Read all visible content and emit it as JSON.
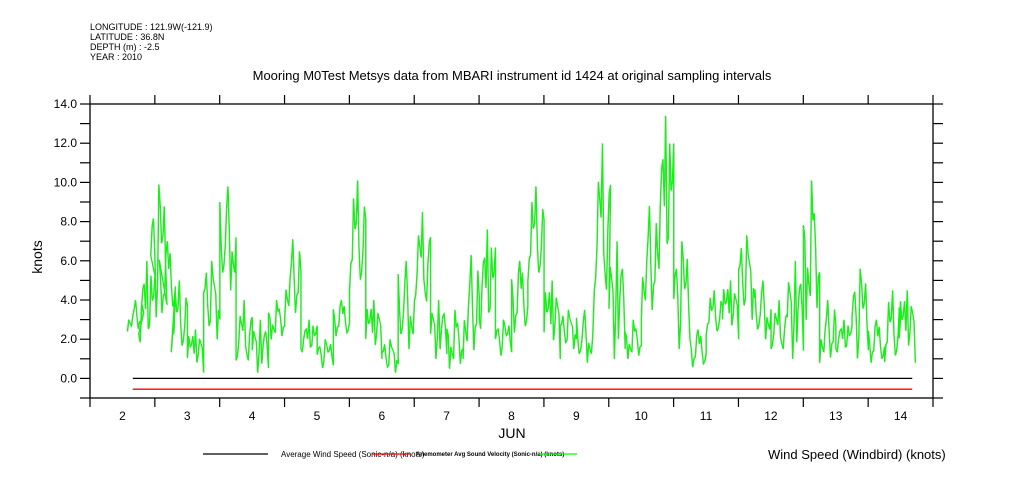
{
  "metadata": {
    "longitude": "LONGITUDE : 121.9W(-121.9)",
    "latitude": "LATITUDE : 36.8N",
    "depth": "DEPTH (m) : -2.5",
    "year": "YEAR : 2010"
  },
  "chart_data": {
    "type": "line",
    "title": "Mooring M0Test Metsys data from MBARI instrument id 1424 at original sampling intervals",
    "xlabel": "JUN",
    "ylabel": "knots",
    "xlim": [
      2,
      15
    ],
    "ylim": [
      -1,
      14
    ],
    "x_ticks": [
      2,
      3,
      4,
      5,
      6,
      7,
      8,
      9,
      10,
      11,
      12,
      13,
      14
    ],
    "y_ticks": [
      0,
      2,
      4,
      6,
      8,
      10,
      12,
      14
    ],
    "y_tick_labels": [
      "0.0",
      "2.0",
      "4.0",
      "6.0",
      "8.0",
      "10.0",
      "12.0",
      "14.0"
    ],
    "grid": false,
    "legend_placement": "bottom",
    "series": [
      {
        "name": "Average Wind Speed (Sonic-n/a) (knots)",
        "color": "#000000",
        "kind": "constant",
        "value": 0.0,
        "x_range": [
          2.66,
          14.68
        ]
      },
      {
        "name": "Anemometer Avg Sound Velocity (Sonic-n/a) (knots)",
        "color": "#ff0000",
        "kind": "constant",
        "value": -0.55,
        "x_range": [
          2.66,
          14.68
        ]
      },
      {
        "name": "Wind Speed (Windbird) (knots)",
        "color": "#00ff00",
        "kind": "binned-range",
        "day": [
          2.7,
          2.875,
          3.06,
          3.19,
          3.375,
          3.625,
          3.875,
          4.125,
          4.375,
          4.625,
          4.875,
          5.125,
          5.375,
          5.625,
          5.875,
          6.125,
          6.375,
          6.625,
          6.875,
          7.125,
          7.375,
          7.625,
          7.875,
          8.125,
          8.375,
          8.625,
          8.875,
          9.125,
          9.375,
          9.625,
          9.9,
          10.125,
          10.375,
          10.625,
          10.875,
          11.125,
          11.375,
          11.625,
          11.875,
          12.125,
          12.375,
          12.625,
          12.875,
          13.125,
          13.375,
          13.625,
          13.875,
          14.125,
          14.375,
          14.6
        ],
        "low": [
          2.4,
          1.0,
          2.5,
          3.0,
          1.0,
          0.3,
          2.0,
          4.5,
          0.3,
          0.3,
          2.0,
          3.0,
          1.0,
          0.4,
          2.0,
          4.0,
          1.0,
          0.3,
          1.5,
          3.0,
          1.0,
          0.5,
          1.0,
          1.5,
          1.0,
          2.0,
          4.5,
          1.0,
          1.5,
          0.8,
          3.0,
          1.0,
          1.0,
          3.0,
          4.0,
          1.0,
          0.4,
          2.0,
          2.0,
          3.0,
          2.0,
          1.0,
          1.0,
          3.0,
          0.8,
          1.0,
          0.6,
          0.6,
          0.5,
          0.8
        ],
        "high": [
          4.0,
          6.0,
          9.9,
          7.0,
          5.0,
          2.5,
          6.0,
          9.8,
          4.0,
          3.0,
          4.0,
          7.1,
          3.0,
          2.0,
          4.0,
          10.1,
          4.0,
          2.0,
          6.0,
          8.5,
          4.0,
          3.5,
          6.3,
          7.6,
          3.0,
          6.0,
          9.8,
          5.0,
          3.5,
          3.5,
          12.0,
          7.0,
          3.0,
          8.8,
          13.4,
          7.0,
          2.5,
          4.5,
          5.0,
          7.3,
          5.0,
          4.0,
          6.0,
          10.1,
          4.0,
          3.0,
          5.6,
          3.0,
          4.5,
          4.5
        ]
      }
    ]
  }
}
